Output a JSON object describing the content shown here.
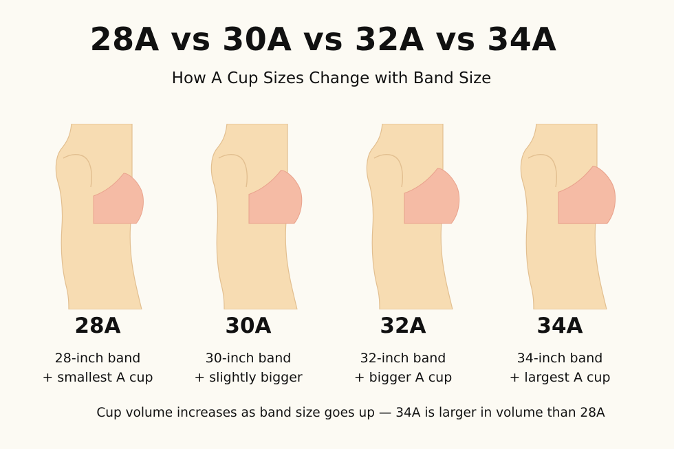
{
  "title": "28A vs 30A vs 32A vs 34A",
  "subtitle": "How A Cup Sizes Change with Band Size",
  "sizes": [
    {
      "label": "28A",
      "line1": "28-inch band",
      "line2": "+ smallest A cup",
      "cup_scale": 1.0
    },
    {
      "label": "30A",
      "line1": "30-inch band",
      "line2": "+ slightly bigger",
      "cup_scale": 1.06
    },
    {
      "label": "32A",
      "line1": "32-inch band",
      "line2": "+ bigger A cup",
      "cup_scale": 1.1
    },
    {
      "label": "34A",
      "line1": "34-inch band",
      "line2": "+ largest A cup",
      "cup_scale": 1.14
    }
  ],
  "footnote": "Cup volume increases as band size goes up — 34A is larger in volume than 28A",
  "colors": {
    "background": "#fcfaf3",
    "skin": "#f7dcb2",
    "skin_outline": "#e2bf90",
    "cup": "#f5bba5",
    "cup_outline": "#e9a48e"
  }
}
